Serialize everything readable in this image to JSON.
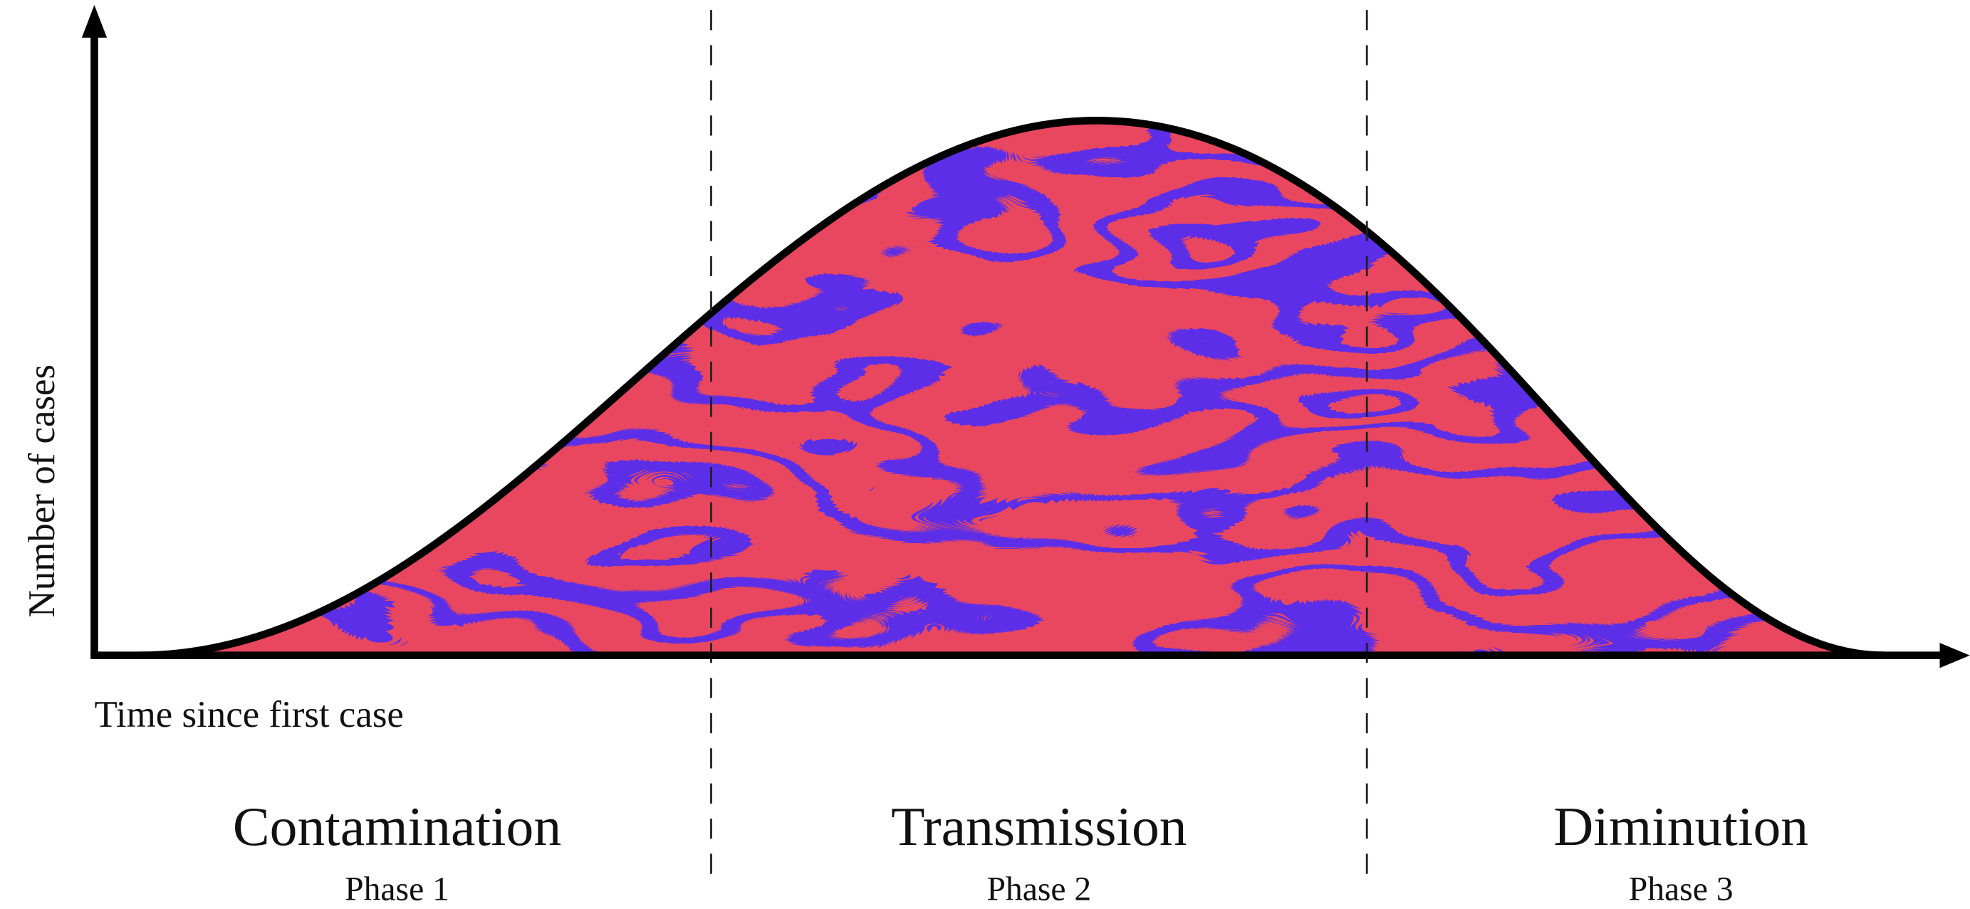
{
  "y_axis_label": "Number of cases",
  "x_axis_label": "Time since first case",
  "phases": [
    {
      "name": "Contamination",
      "label": "Phase 1"
    },
    {
      "name": "Transmission",
      "label": "Phase 2"
    },
    {
      "name": "Diminution",
      "label": "Phase 3"
    }
  ]
}
